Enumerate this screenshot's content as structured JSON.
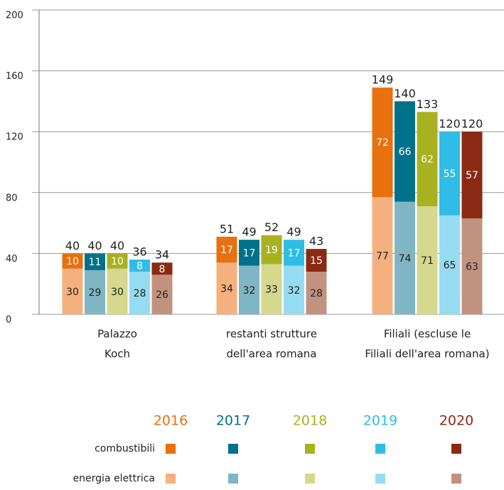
{
  "chart_data": {
    "type": "bar",
    "stacked": true,
    "categories": [
      [
        "Palazzo",
        "Koch"
      ],
      [
        "restanti strutture",
        "dell'area romana"
      ],
      [
        "Filiali (escluse le",
        "Filiali dell'area romana)"
      ]
    ],
    "series_names": [
      "combustibili",
      "energia elettrica"
    ],
    "years": [
      {
        "name": "2016",
        "colors": [
          "#e8700e",
          "#f5b07f"
        ],
        "values": [
          [
            10,
            17,
            72
          ],
          [
            30,
            34,
            77
          ]
        ],
        "totals": [
          40,
          51,
          149
        ]
      },
      {
        "name": "2017",
        "colors": [
          "#00718a",
          "#7fb5c4"
        ],
        "values": [
          [
            11,
            17,
            66
          ],
          [
            29,
            32,
            74
          ]
        ],
        "totals": [
          40,
          49,
          140
        ]
      },
      {
        "name": "2018",
        "colors": [
          "#a8b120",
          "#d5d88d"
        ],
        "values": [
          [
            10,
            19,
            62
          ],
          [
            30,
            33,
            71
          ]
        ],
        "totals": [
          40,
          52,
          133
        ]
      },
      {
        "name": "2019",
        "colors": [
          "#2fbde6",
          "#95dcf2"
        ],
        "values": [
          [
            8,
            17,
            55
          ],
          [
            28,
            32,
            65
          ]
        ],
        "totals": [
          36,
          49,
          120
        ]
      },
      {
        "name": "2020",
        "colors": [
          "#8b2a14",
          "#c29280"
        ],
        "values": [
          [
            8,
            15,
            57
          ],
          [
            26,
            28,
            63
          ]
        ],
        "totals": [
          34,
          43,
          120
        ]
      }
    ],
    "ylim": [
      0,
      200
    ],
    "yticks": [
      0,
      40,
      80,
      120,
      160,
      200
    ],
    "grid": true
  }
}
